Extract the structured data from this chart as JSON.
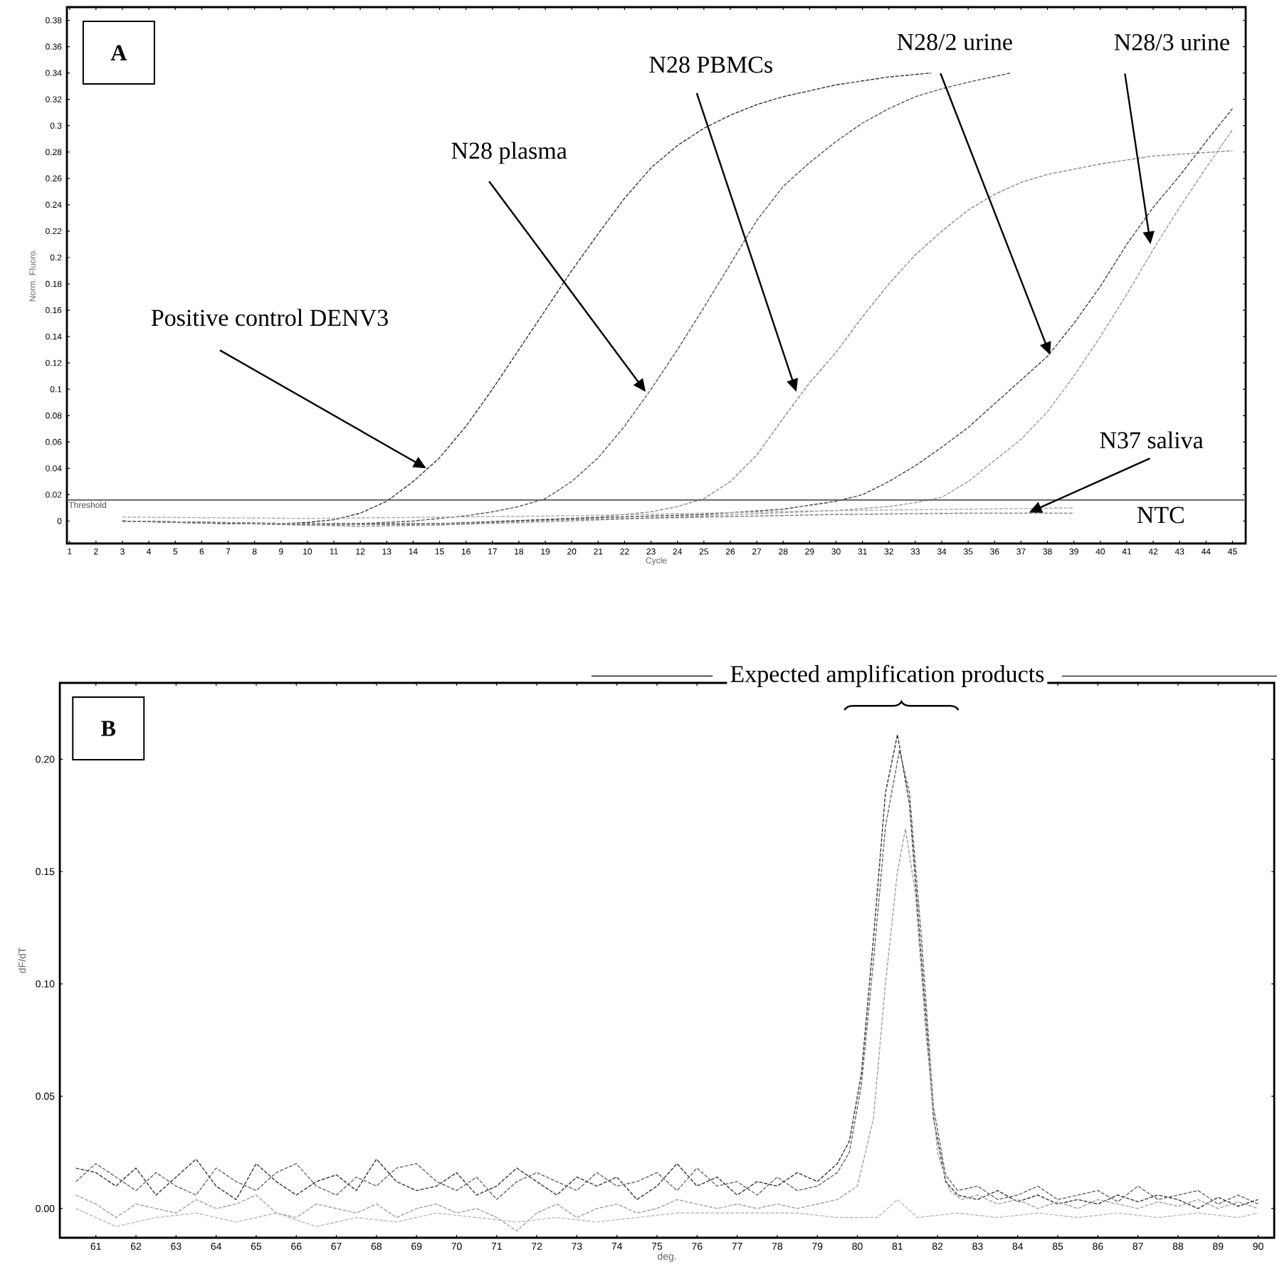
{
  "chart_data": [
    {
      "type": "line",
      "title": "A",
      "xlabel": "Cycle",
      "ylabel": "Norm. Fluoro.",
      "line_style": "dashed",
      "xlim": [
        0.9,
        45.5
      ],
      "ylim": [
        -0.017,
        0.39
      ],
      "xticks": [
        1,
        2,
        3,
        4,
        5,
        6,
        7,
        8,
        9,
        10,
        11,
        12,
        13,
        14,
        15,
        16,
        17,
        18,
        19,
        20,
        21,
        22,
        23,
        24,
        25,
        26,
        27,
        28,
        29,
        30,
        31,
        32,
        33,
        34,
        35,
        36,
        37,
        38,
        39,
        40,
        41,
        42,
        43,
        44,
        45
      ],
      "yticks": [
        0,
        0.02,
        0.04,
        0.06,
        0.08,
        0.1,
        0.12,
        0.14,
        0.16,
        0.18,
        0.2,
        0.22,
        0.24,
        0.26,
        0.28,
        0.3,
        0.32,
        0.34,
        0.36,
        0.38
      ],
      "ref_lines": [
        {
          "axis": "y",
          "value": 0.016,
          "label": "Threshold",
          "color": "#555555"
        }
      ],
      "series": [
        {
          "color": "#333333",
          "x": [
            3,
            5,
            7,
            9,
            10,
            11,
            12,
            13,
            14,
            15,
            16,
            17,
            18,
            19,
            20,
            21,
            22,
            23,
            24,
            25,
            26,
            27,
            28,
            30,
            32,
            33.6
          ],
          "values": [
            0.0,
            -0.001,
            -0.002,
            -0.002,
            -0.001,
            0.001,
            0.006,
            0.015,
            0.03,
            0.048,
            0.072,
            0.1,
            0.13,
            0.16,
            0.19,
            0.218,
            0.245,
            0.268,
            0.285,
            0.298,
            0.308,
            0.316,
            0.322,
            0.331,
            0.337,
            0.34
          ]
        },
        {
          "color": "#555555",
          "x": [
            3,
            6,
            9,
            12,
            14,
            16,
            17,
            18,
            19,
            20,
            21,
            22,
            23,
            24,
            25,
            26,
            27,
            28,
            29,
            30,
            31,
            32,
            33,
            34,
            35,
            36.6
          ],
          "values": [
            0.0,
            -0.001,
            -0.002,
            -0.002,
            0.0,
            0.004,
            0.007,
            0.011,
            0.017,
            0.03,
            0.048,
            0.072,
            0.1,
            0.13,
            0.162,
            0.195,
            0.228,
            0.254,
            0.272,
            0.288,
            0.302,
            0.313,
            0.322,
            0.328,
            0.333,
            0.34
          ]
        },
        {
          "color": "#8a8a8a",
          "x": [
            3,
            8,
            12,
            15,
            18,
            21,
            23,
            24,
            25,
            26,
            27,
            28,
            29,
            30,
            31,
            32,
            33,
            34,
            35,
            36,
            37,
            38,
            40,
            42,
            45
          ],
          "values": [
            0.0,
            -0.002,
            -0.004,
            -0.003,
            0.0,
            0.003,
            0.007,
            0.011,
            0.017,
            0.03,
            0.05,
            0.078,
            0.105,
            0.128,
            0.155,
            0.18,
            0.202,
            0.22,
            0.236,
            0.248,
            0.257,
            0.263,
            0.271,
            0.277,
            0.281
          ]
        },
        {
          "color": "#444444",
          "x": [
            3,
            10,
            15,
            20,
            25,
            28,
            30,
            31,
            32,
            33,
            34,
            35,
            36,
            37,
            38,
            39,
            40,
            41,
            42,
            43,
            44,
            45
          ],
          "values": [
            0.0,
            -0.002,
            -0.002,
            0.002,
            0.005,
            0.009,
            0.015,
            0.02,
            0.03,
            0.042,
            0.056,
            0.071,
            0.089,
            0.107,
            0.125,
            0.15,
            0.178,
            0.21,
            0.238,
            0.262,
            0.288,
            0.313
          ]
        },
        {
          "color": "#999999",
          "x": [
            3,
            10,
            15,
            20,
            25,
            30,
            32,
            33,
            34,
            35,
            36,
            37,
            38,
            39,
            40,
            41,
            42,
            43,
            44,
            45
          ],
          "values": [
            0.0,
            -0.002,
            -0.003,
            0.0,
            0.004,
            0.008,
            0.011,
            0.014,
            0.018,
            0.03,
            0.046,
            0.062,
            0.083,
            0.11,
            0.14,
            0.172,
            0.206,
            0.238,
            0.268,
            0.297
          ]
        },
        {
          "color": "#aaaaaa",
          "x": [
            3,
            10,
            15,
            20,
            25,
            30,
            35,
            39
          ],
          "values": [
            0.003,
            0.002,
            0.003,
            0.004,
            0.006,
            0.008,
            0.009,
            0.01
          ]
        },
        {
          "color": "#777777",
          "x": [
            3,
            10,
            15,
            20,
            25,
            30,
            35,
            39
          ],
          "values": [
            0.0,
            -0.003,
            -0.002,
            0.001,
            0.003,
            0.005,
            0.006,
            0.006
          ]
        }
      ],
      "annotations": [
        {
          "text": "Positive control DENV3",
          "x": 14.5,
          "y": 0.04
        },
        {
          "text": "N28 plasma",
          "x": 22.8,
          "y": 0.098
        },
        {
          "text": "N28 PBMCs",
          "x": 28.5,
          "y": 0.098
        },
        {
          "text": "N28/2  urine",
          "x": 38.1,
          "y": 0.126
        },
        {
          "text": "N28/3 urine",
          "x": 41.9,
          "y": 0.21
        },
        {
          "text": "N37 saliva",
          "x": 37.3,
          "y": 0.0065
        },
        "NTC"
      ]
    },
    {
      "type": "line",
      "title": "B",
      "xlabel": "deg.",
      "ylabel": "dF/dT",
      "line_style": "dashed",
      "xlim": [
        60.1,
        90.4
      ],
      "ylim": [
        -0.013,
        0.234
      ],
      "xticks": [
        61,
        62,
        63,
        64,
        65,
        66,
        67,
        68,
        69,
        70,
        71,
        72,
        73,
        74,
        75,
        76,
        77,
        78,
        79,
        80,
        81,
        82,
        83,
        84,
        85,
        86,
        87,
        88,
        89,
        90
      ],
      "yticks": [
        {
          "value": 0,
          "label": "0.00"
        },
        {
          "value": 0.05,
          "label": "0.05"
        },
        {
          "value": 0.1,
          "label": "0.10"
        },
        {
          "value": 0.15,
          "label": "0.15"
        },
        {
          "value": 0.2,
          "label": "0.20"
        }
      ],
      "series": [
        {
          "color": "#333333",
          "x": [
            60.5,
            61,
            61.5,
            62,
            62.5,
            63,
            63.5,
            64,
            64.5,
            65,
            65.5,
            66,
            66.5,
            67,
            67.5,
            68,
            68.5,
            69,
            69.5,
            70,
            70.5,
            71,
            71.5,
            72,
            72.5,
            73,
            73.5,
            74,
            74.5,
            75,
            75.5,
            76,
            76.5,
            77,
            77.5,
            78,
            78.5,
            79,
            79.5,
            79.8,
            80.1,
            80.4,
            80.7,
            81.0,
            81.3,
            81.6,
            81.9,
            82.2,
            82.5,
            83,
            83.5,
            84,
            84.5,
            85,
            85.5,
            86,
            86.5,
            87,
            87.5,
            88,
            88.5,
            89,
            89.5,
            90
          ],
          "values": [
            0.018,
            0.016,
            0.01,
            0.018,
            0.006,
            0.014,
            0.022,
            0.01,
            0.004,
            0.02,
            0.012,
            0.006,
            0.012,
            0.015,
            0.008,
            0.022,
            0.012,
            0.008,
            0.01,
            0.016,
            0.006,
            0.01,
            0.018,
            0.012,
            0.006,
            0.014,
            0.01,
            0.014,
            0.004,
            0.01,
            0.02,
            0.01,
            0.014,
            0.006,
            0.012,
            0.01,
            0.016,
            0.012,
            0.02,
            0.03,
            0.06,
            0.12,
            0.185,
            0.211,
            0.18,
            0.11,
            0.04,
            0.012,
            0.006,
            0.004,
            0.008,
            0.003,
            0.006,
            0.002,
            0.004,
            0.002,
            0.006,
            0.003,
            0.006,
            0.004,
            0.0,
            0.005,
            0.001,
            0.004
          ]
        },
        {
          "color": "#666666",
          "x": [
            60.5,
            61,
            61.5,
            62,
            62.5,
            63,
            63.5,
            64,
            64.5,
            65,
            65.5,
            66,
            66.5,
            67,
            67.5,
            68,
            68.5,
            69,
            69.5,
            70,
            70.5,
            71,
            71.5,
            72,
            72.5,
            73,
            73.5,
            74,
            74.5,
            75,
            75.5,
            76,
            76.5,
            77,
            77.5,
            78,
            78.5,
            79,
            79.5,
            79.8,
            80.1,
            80.4,
            80.7,
            81.05,
            81.3,
            81.6,
            81.9,
            82.2,
            82.5,
            83,
            83.5,
            84,
            84.5,
            85,
            85.5,
            86,
            86.5,
            87,
            87.5,
            88,
            88.5,
            89,
            89.5,
            90
          ],
          "values": [
            0.012,
            0.02,
            0.014,
            0.008,
            0.016,
            0.01,
            0.006,
            0.018,
            0.012,
            0.008,
            0.016,
            0.02,
            0.01,
            0.006,
            0.014,
            0.01,
            0.018,
            0.02,
            0.012,
            0.008,
            0.014,
            0.004,
            0.012,
            0.016,
            0.012,
            0.008,
            0.016,
            0.01,
            0.012,
            0.016,
            0.008,
            0.018,
            0.01,
            0.012,
            0.006,
            0.014,
            0.008,
            0.01,
            0.016,
            0.025,
            0.055,
            0.11,
            0.17,
            0.204,
            0.185,
            0.12,
            0.045,
            0.015,
            0.008,
            0.01,
            0.004,
            0.006,
            0.01,
            0.004,
            0.006,
            0.008,
            0.003,
            0.01,
            0.004,
            0.006,
            0.008,
            0.002,
            0.006,
            0.002
          ]
        },
        {
          "color": "#a0a0a0",
          "x": [
            60.5,
            61,
            61.5,
            62,
            62.5,
            63,
            63.5,
            64,
            64.5,
            65,
            65.5,
            66,
            66.5,
            67,
            67.5,
            68,
            68.5,
            69,
            69.5,
            70,
            70.5,
            71,
            71.5,
            72,
            72.5,
            73,
            73.5,
            74,
            74.5,
            75,
            75.5,
            76,
            76.5,
            77,
            77.5,
            78,
            78.5,
            79,
            79.5,
            80,
            80.4,
            80.7,
            81.0,
            81.2,
            81.45,
            81.7,
            82.0,
            82.3,
            82.6,
            83,
            83.5,
            84,
            84.5,
            85,
            85.5,
            86,
            86.5,
            87,
            87.5,
            88,
            88.5,
            89,
            89.5,
            90
          ],
          "values": [
            0.006,
            0.002,
            -0.004,
            0.002,
            0.0,
            -0.002,
            0.004,
            0.0,
            0.002,
            0.006,
            -0.002,
            -0.004,
            0.002,
            0.0,
            -0.002,
            0.002,
            -0.004,
            0.0,
            0.002,
            -0.002,
            0.0,
            -0.004,
            -0.01,
            -0.002,
            0.002,
            -0.004,
            0.0,
            0.002,
            -0.002,
            0.0,
            0.004,
            0.002,
            0.0,
            0.002,
            0.0,
            0.002,
            0.0,
            0.002,
            0.004,
            0.01,
            0.04,
            0.1,
            0.15,
            0.169,
            0.14,
            0.08,
            0.025,
            0.008,
            0.004,
            0.006,
            0.002,
            0.004,
            0.0,
            0.003,
            0.0,
            0.004,
            0.002,
            0.0,
            0.003,
            0.001,
            0.004,
            0.0,
            0.003,
            0.0
          ]
        },
        {
          "color": "#bbbbbb",
          "x": [
            60.5,
            61.5,
            62.5,
            63.5,
            64.5,
            65.5,
            66.5,
            67.5,
            68.5,
            69.5,
            70.5,
            71.5,
            72.5,
            73.5,
            74.5,
            75.5,
            76.5,
            77.5,
            78.5,
            79.5,
            80.5,
            81.0,
            81.5,
            82.5,
            83.5,
            84.5,
            85.5,
            86.5,
            87.5,
            88.5,
            89.5,
            90
          ],
          "values": [
            0.0,
            -0.008,
            -0.004,
            -0.002,
            -0.006,
            -0.002,
            -0.008,
            -0.004,
            -0.006,
            -0.002,
            -0.004,
            -0.006,
            -0.004,
            -0.006,
            -0.004,
            -0.002,
            -0.002,
            -0.002,
            -0.002,
            -0.004,
            -0.004,
            0.004,
            -0.004,
            -0.002,
            -0.004,
            -0.002,
            -0.004,
            -0.002,
            -0.004,
            -0.002,
            -0.004,
            -0.002
          ]
        }
      ],
      "annotations": [
        {
          "text": "Expected amplification products",
          "x": 81.1,
          "y": 0.213
        }
      ]
    }
  ]
}
